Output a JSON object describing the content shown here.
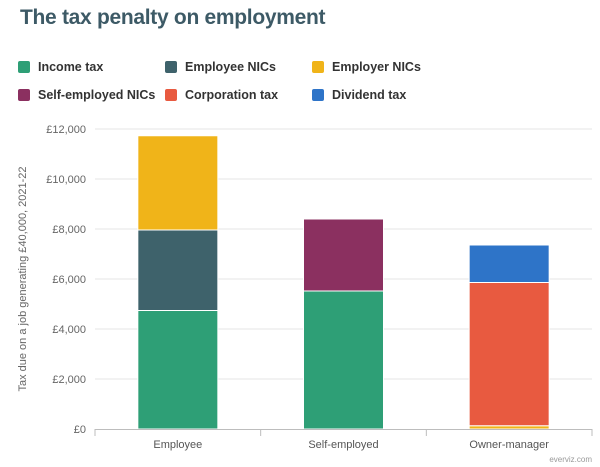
{
  "chart_data": {
    "type": "bar",
    "stacked": true,
    "title": "The tax penalty on employment",
    "ylabel": "Tax due on a job generating £40,000, 2021-22",
    "xlabel": "",
    "categories": [
      "Employee",
      "Self-employed",
      "Owner-manager"
    ],
    "ylim": [
      0,
      12000
    ],
    "yticks": [
      0,
      2000,
      4000,
      6000,
      8000,
      10000,
      12000
    ],
    "ytick_labels": [
      "£0",
      "£2,000",
      "£4,000",
      "£6,000",
      "£8,000",
      "£10,000",
      "£12,000"
    ],
    "legend_position": "top",
    "grid": true,
    "series": [
      {
        "name": "Income tax",
        "color": "#2e9f76",
        "values": [
          4740,
          5520,
          0
        ]
      },
      {
        "name": "Employee NICs",
        "color": "#3e626b",
        "values": [
          3220,
          0,
          0
        ]
      },
      {
        "name": "Employer NICs",
        "color": "#f0b419",
        "values": [
          3770,
          0,
          130
        ]
      },
      {
        "name": "Self-employed NICs",
        "color": "#8b3060",
        "values": [
          0,
          2880,
          0
        ]
      },
      {
        "name": "Corporation tax",
        "color": "#e85a40",
        "values": [
          0,
          0,
          5730
        ]
      },
      {
        "name": "Dividend tax",
        "color": "#2e74c8",
        "values": [
          0,
          0,
          1500
        ]
      }
    ]
  },
  "credit": "everviz.com"
}
